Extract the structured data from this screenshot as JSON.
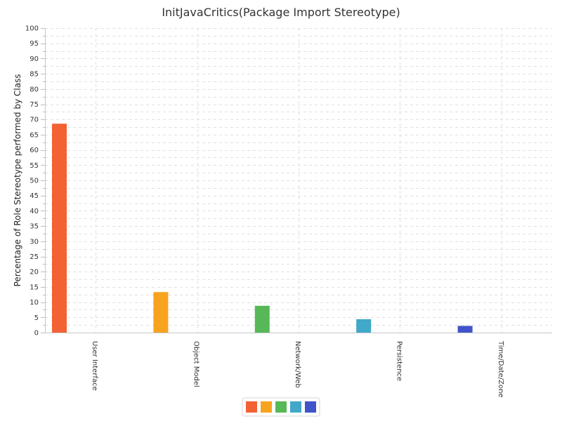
{
  "chart_data": {
    "type": "bar",
    "title": "InitJavaCritics(Package Import Stereotype)",
    "ylabel": "Percentage of Role Stereotype performed by Class",
    "xlabel": "",
    "ylim": [
      0,
      100
    ],
    "ytick_step": 5,
    "ytick_labels": [
      "0",
      "5",
      "10",
      "15",
      "20",
      "25",
      "30",
      "35",
      "40",
      "45",
      "50",
      "55",
      "60",
      "65",
      "70",
      "75",
      "80",
      "85",
      "90",
      "95",
      "100"
    ],
    "categories": [
      "User Interface",
      "Object Model",
      "Network/Web",
      "Persistence",
      "Time/Date/Zone"
    ],
    "values": [
      68.6,
      13.3,
      8.8,
      4.4,
      2.2
    ],
    "colors": [
      "#f26233",
      "#f8a31f",
      "#56b856",
      "#41a8c9",
      "#4055c9"
    ],
    "grid": true,
    "legend": "bottom-center"
  }
}
